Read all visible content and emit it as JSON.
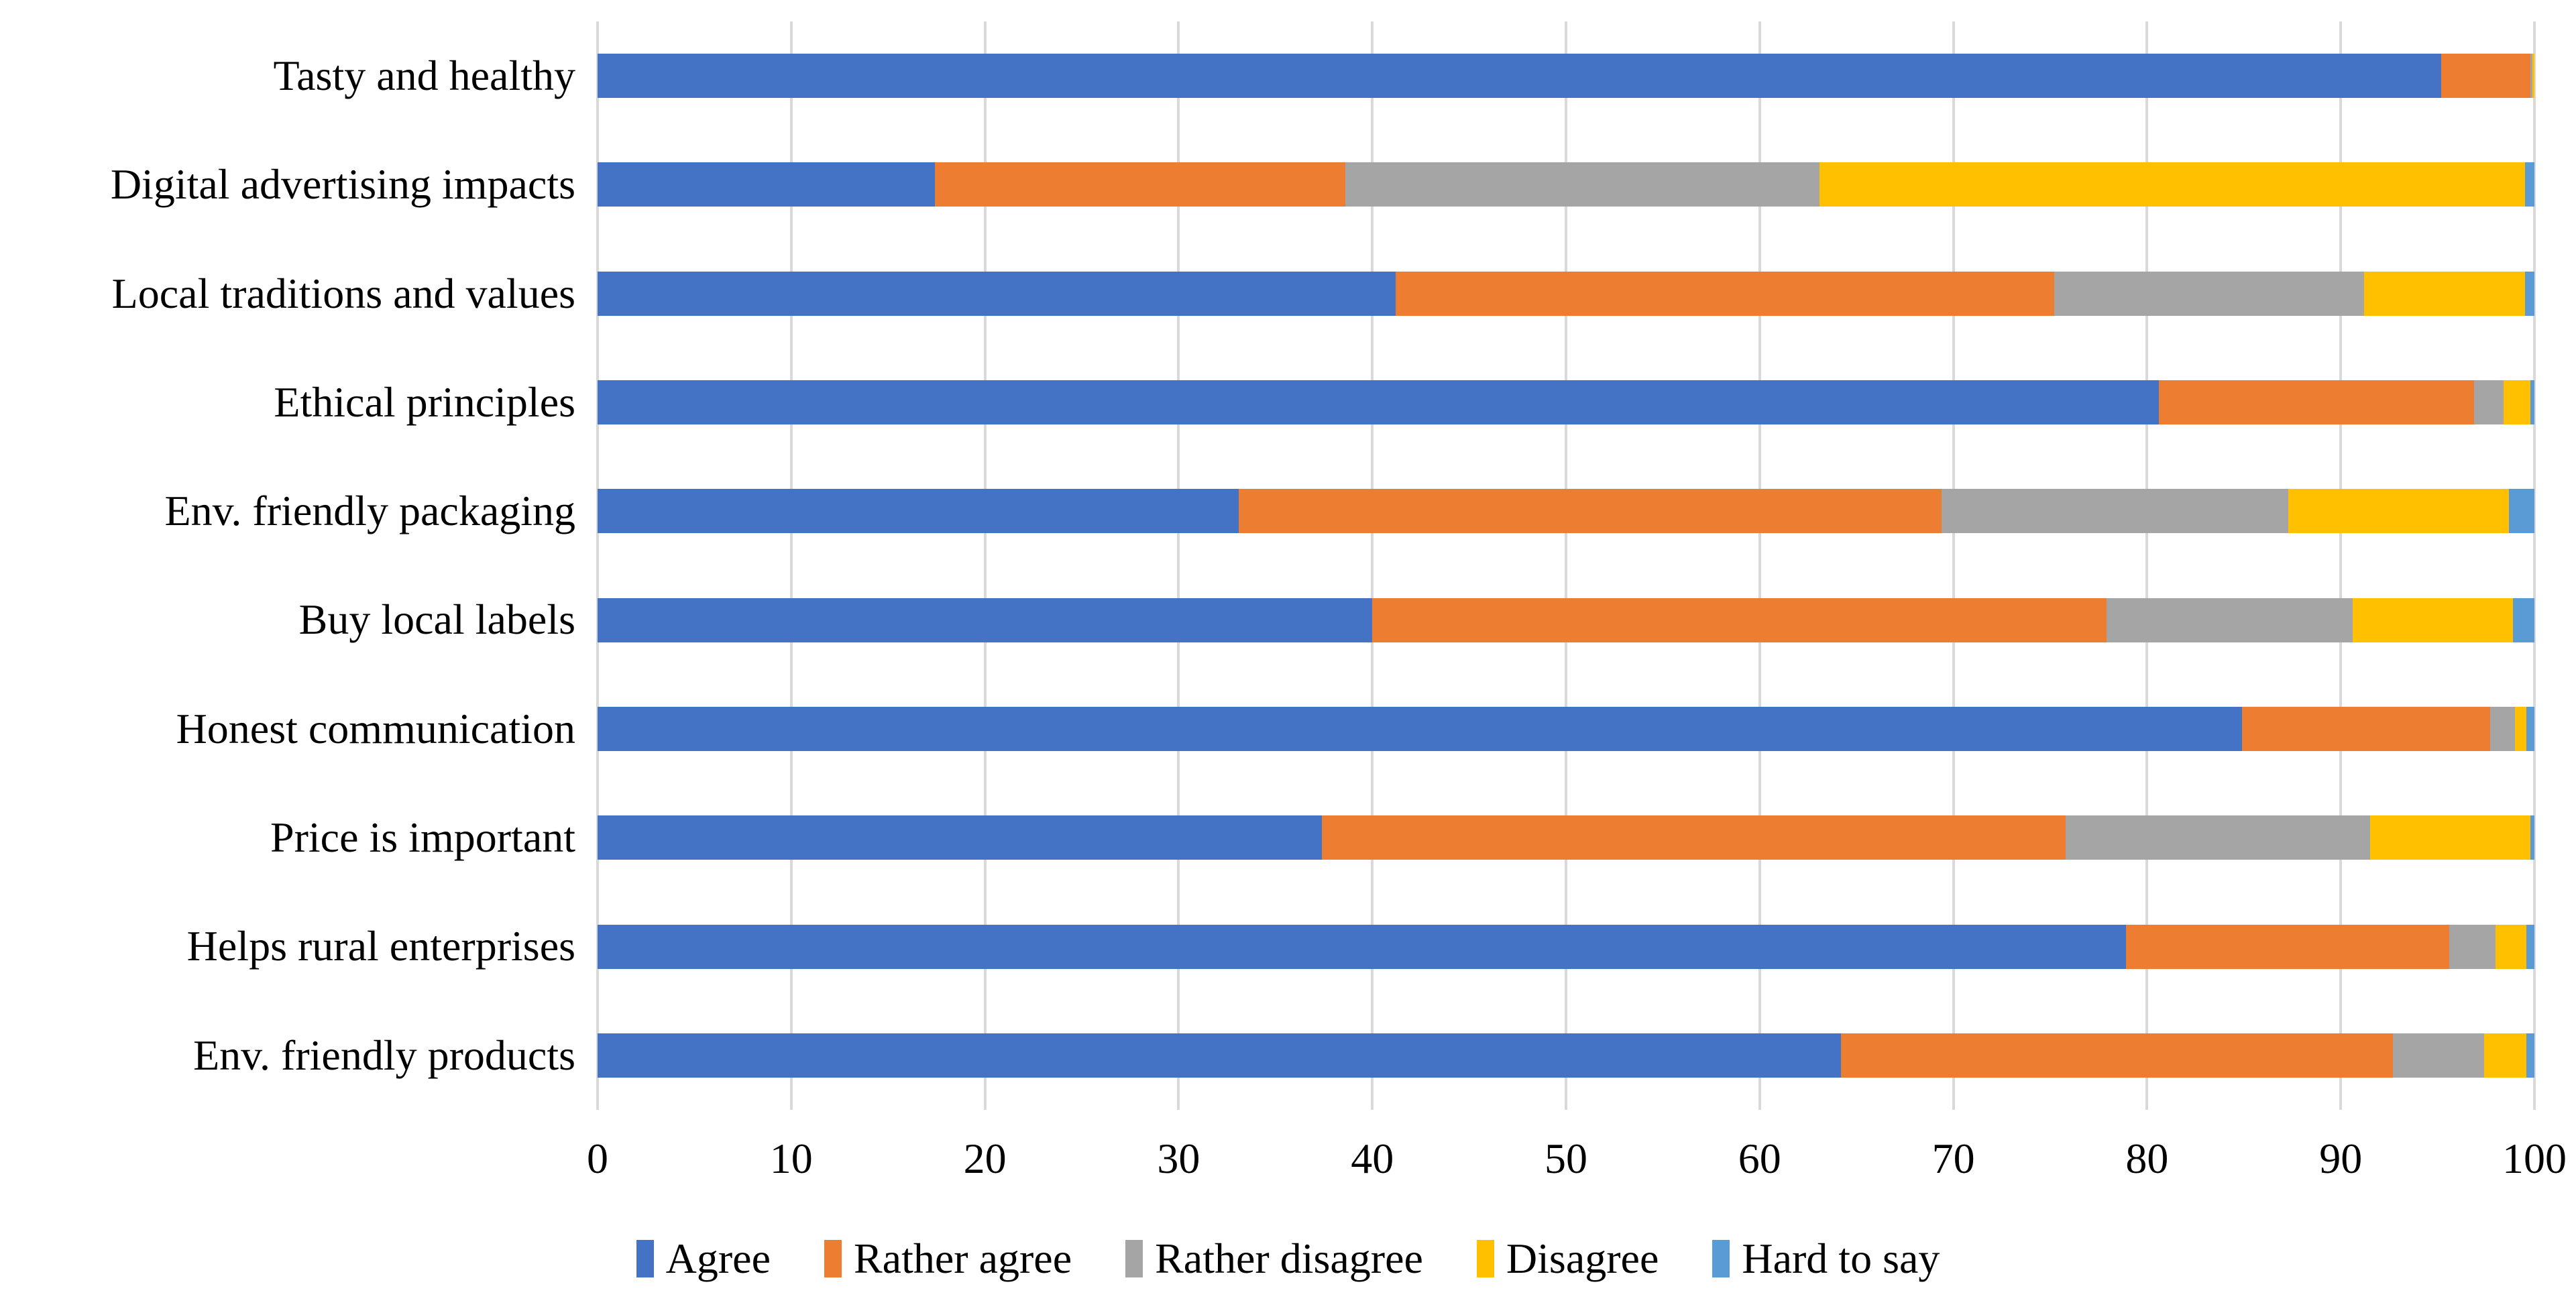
{
  "chart_data": {
    "type": "bar",
    "stacked": true,
    "orientation": "horizontal",
    "title": "",
    "xlabel": "",
    "ylabel": "",
    "categories": [
      "Tasty and healthy",
      "Digital advertising impacts",
      "Local traditions and values",
      "Ethical principles",
      "Env. friendly packaging",
      "Buy local labels",
      "Honest communication",
      "Price is important",
      "Helps rural enterprises",
      "Env. friendly products"
    ],
    "series": [
      {
        "name": "Agree",
        "color": "#4472C4",
        "values": [
          95.2,
          17.4,
          41.2,
          80.6,
          33.1,
          40.0,
          84.9,
          37.4,
          78.9,
          64.2
        ]
      },
      {
        "name": "Rather agree",
        "color": "#ED7D31",
        "values": [
          4.6,
          21.2,
          34.0,
          16.3,
          36.3,
          37.9,
          12.8,
          38.4,
          16.7,
          28.5
        ]
      },
      {
        "name": "Rather disagree",
        "color": "#A5A5A5",
        "values": [
          0.1,
          24.5,
          16.0,
          1.5,
          17.9,
          12.7,
          1.3,
          15.7,
          2.4,
          4.7
        ]
      },
      {
        "name": "Disagree",
        "color": "#FFC000",
        "values": [
          0.1,
          36.4,
          8.3,
          1.4,
          11.4,
          8.3,
          0.6,
          8.3,
          1.6,
          2.2
        ]
      },
      {
        "name": "Hard to say",
        "color": "#5B9BD5",
        "values": [
          0.0,
          0.5,
          0.5,
          0.2,
          1.3,
          1.1,
          0.4,
          0.2,
          0.4,
          0.4
        ]
      }
    ],
    "xlim": [
      0,
      100
    ],
    "x_ticks": [
      0,
      10,
      20,
      30,
      40,
      50,
      60,
      70,
      80,
      90,
      100
    ],
    "grid": "vertical",
    "gridline_color": "#D9D9D9",
    "legend_position": "bottom",
    "background": "#FFFFFF",
    "text_color": "#000000"
  }
}
